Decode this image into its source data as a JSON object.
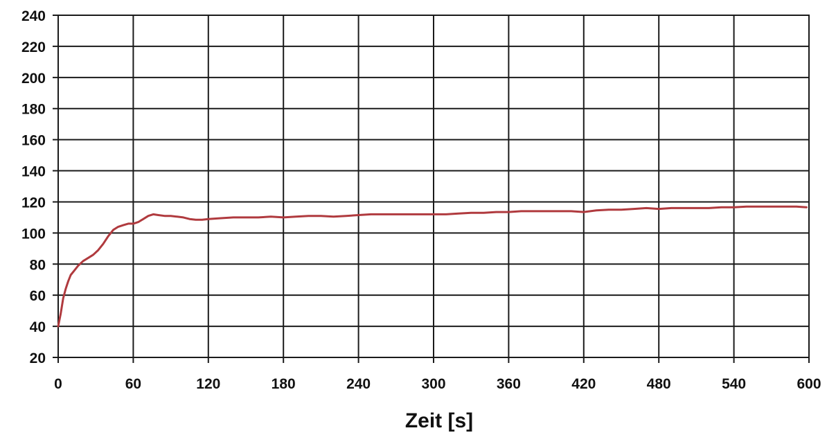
{
  "chart_data": {
    "type": "line",
    "title": "",
    "xlabel": "Zeit [s]",
    "ylabel": "",
    "xlim": [
      0,
      600
    ],
    "ylim": [
      20,
      240
    ],
    "x_ticks": [
      0,
      60,
      120,
      180,
      240,
      300,
      360,
      420,
      480,
      540,
      600
    ],
    "y_ticks": [
      20,
      40,
      60,
      80,
      100,
      120,
      140,
      160,
      180,
      200,
      220,
      240
    ],
    "grid": true,
    "legend": "none",
    "series": [
      {
        "color": "#b03a3e",
        "points": [
          [
            0,
            40
          ],
          [
            2,
            48
          ],
          [
            4,
            58
          ],
          [
            6,
            64
          ],
          [
            8,
            69
          ],
          [
            10,
            73
          ],
          [
            13,
            76
          ],
          [
            16,
            79
          ],
          [
            20,
            82
          ],
          [
            24,
            84
          ],
          [
            28,
            86
          ],
          [
            32,
            89
          ],
          [
            36,
            93
          ],
          [
            40,
            98
          ],
          [
            44,
            102
          ],
          [
            48,
            104
          ],
          [
            52,
            105
          ],
          [
            56,
            106
          ],
          [
            60,
            106
          ],
          [
            64,
            107
          ],
          [
            68,
            109
          ],
          [
            72,
            111
          ],
          [
            76,
            112
          ],
          [
            80,
            111.5
          ],
          [
            85,
            111
          ],
          [
            90,
            111
          ],
          [
            95,
            110.5
          ],
          [
            100,
            110
          ],
          [
            105,
            109
          ],
          [
            110,
            108.5
          ],
          [
            115,
            108.5
          ],
          [
            120,
            109
          ],
          [
            130,
            109.5
          ],
          [
            140,
            110
          ],
          [
            150,
            110
          ],
          [
            160,
            110
          ],
          [
            170,
            110.5
          ],
          [
            180,
            110
          ],
          [
            190,
            110.5
          ],
          [
            200,
            111
          ],
          [
            210,
            111
          ],
          [
            220,
            110.5
          ],
          [
            230,
            111
          ],
          [
            240,
            111.5
          ],
          [
            250,
            112
          ],
          [
            260,
            112
          ],
          [
            270,
            112
          ],
          [
            280,
            112
          ],
          [
            290,
            112
          ],
          [
            300,
            112
          ],
          [
            310,
            112
          ],
          [
            320,
            112.5
          ],
          [
            330,
            113
          ],
          [
            340,
            113
          ],
          [
            350,
            113.5
          ],
          [
            360,
            113.5
          ],
          [
            370,
            114
          ],
          [
            380,
            114
          ],
          [
            390,
            114
          ],
          [
            400,
            114
          ],
          [
            410,
            114
          ],
          [
            420,
            113.5
          ],
          [
            430,
            114.5
          ],
          [
            440,
            115
          ],
          [
            450,
            115
          ],
          [
            460,
            115.5
          ],
          [
            470,
            116
          ],
          [
            480,
            115.5
          ],
          [
            490,
            116
          ],
          [
            500,
            116
          ],
          [
            510,
            116
          ],
          [
            520,
            116
          ],
          [
            530,
            116.5
          ],
          [
            540,
            116.5
          ],
          [
            550,
            117
          ],
          [
            560,
            117
          ],
          [
            570,
            117
          ],
          [
            580,
            117
          ],
          [
            590,
            117
          ],
          [
            598,
            116.5
          ]
        ]
      }
    ]
  }
}
